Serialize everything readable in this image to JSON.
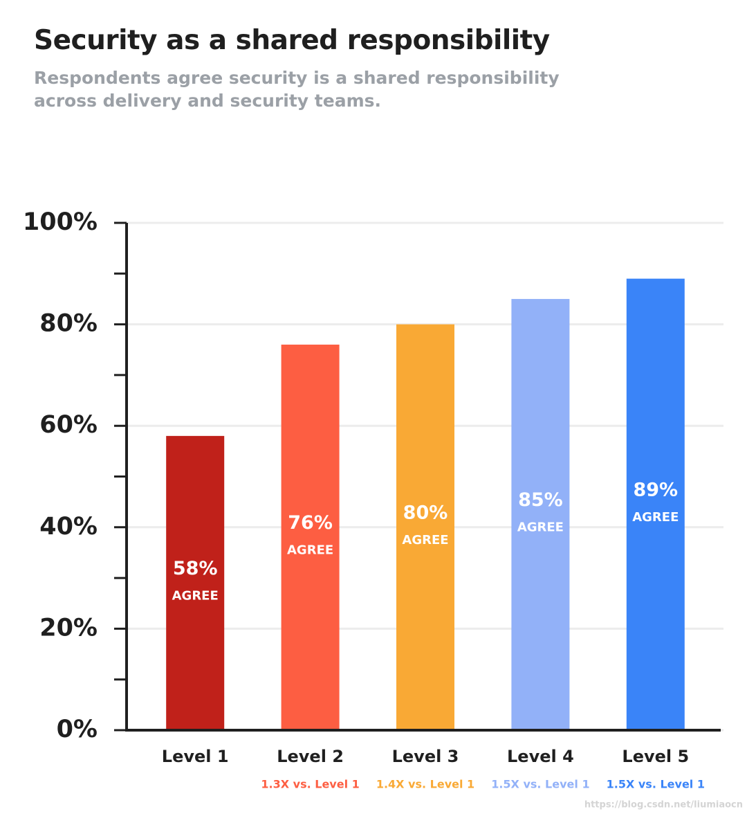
{
  "chart_data": {
    "type": "bar",
    "title": "Security as a shared responsibility",
    "subtitle": "Respondents agree security is a shared responsibility across delivery and security teams.",
    "categories": [
      "Level 1",
      "Level 2",
      "Level 3",
      "Level 4",
      "Level 5"
    ],
    "category_notes": [
      null,
      "1.3X vs. Level 1",
      "1.4X vs. Level 1",
      "1.5X vs. Level 1",
      "1.5X vs. Level 1"
    ],
    "values": [
      58,
      76,
      80,
      85,
      89
    ],
    "value_labels": [
      "58%",
      "76%",
      "80%",
      "85%",
      "89%"
    ],
    "value_sublabel": "AGREE",
    "colors": [
      "#c0211a",
      "#fd5e42",
      "#f9a935",
      "#92b1f8",
      "#3a84f8"
    ],
    "ylim": [
      0,
      100
    ],
    "yticks": [
      {
        "value": 0,
        "label": "0%"
      },
      {
        "value": 20,
        "label": "20%"
      },
      {
        "value": 40,
        "label": "40%"
      },
      {
        "value": 60,
        "label": "60%"
      },
      {
        "value": 80,
        "label": "80%"
      },
      {
        "value": 100,
        "label": "100%"
      }
    ],
    "minor_yticks": [
      10,
      30,
      50,
      70,
      90
    ],
    "grid": true,
    "watermark": "https://blog.csdn.net/liumiaocn"
  }
}
